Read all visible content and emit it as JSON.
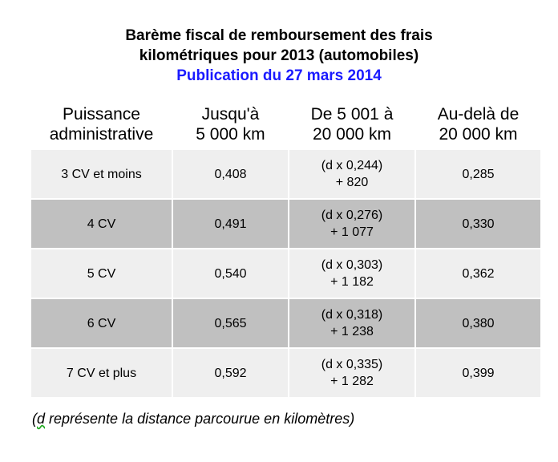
{
  "title": {
    "line1": "Barème fiscal de remboursement des frais",
    "line2": "kilométriques pour 2013 (automobiles)",
    "subtitle": "Publication du 27 mars 2014"
  },
  "headers": [
    [
      "Puissance",
      "administrative"
    ],
    [
      "Jusqu'à",
      "5 000 km"
    ],
    [
      "De 5 001 à",
      "20 000 km"
    ],
    [
      "Au-delà de",
      "20 000 km"
    ]
  ],
  "rows": [
    {
      "power": "3 CV et moins",
      "upto5000": "0,408",
      "mid": [
        "(d x 0,244)",
        "+ 820"
      ],
      "over20000": "0,285"
    },
    {
      "power": "4 CV",
      "upto5000": "0,491",
      "mid": [
        "(d x 0,276)",
        "+ 1 077"
      ],
      "over20000": "0,330"
    },
    {
      "power": "5 CV",
      "upto5000": "0,540",
      "mid": [
        "(d x 0,303)",
        "+ 1 182"
      ],
      "over20000": "0,362"
    },
    {
      "power": "6 CV",
      "upto5000": "0,565",
      "mid": [
        "(d x 0,318)",
        "+ 1 238"
      ],
      "over20000": "0,380"
    },
    {
      "power": "7 CV et plus",
      "upto5000": "0,592",
      "mid": [
        "(d x 0,335)",
        "+ 1 282"
      ],
      "over20000": "0,399"
    }
  ],
  "note": {
    "prefix": "(",
    "d": "d",
    "rest": " représente la distance parcourue en kilomètres)"
  },
  "colors": {
    "row_light": "#efefef",
    "row_dark": "#c0c0c0",
    "subtitle": "#1a1aff"
  }
}
